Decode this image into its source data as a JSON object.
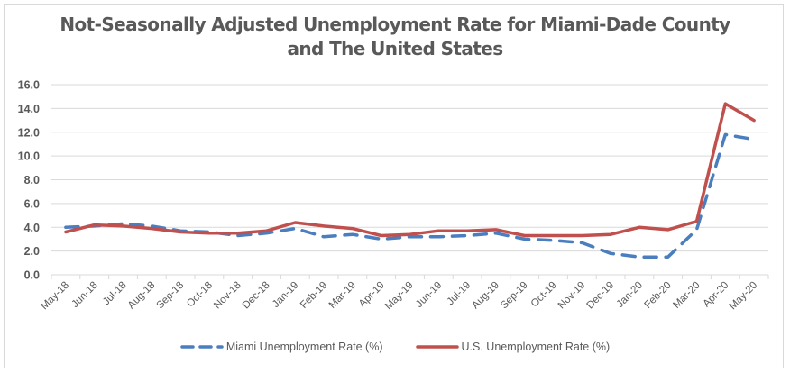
{
  "chart_data": {
    "type": "line",
    "title": "Not-Seasonally Adjusted Unemployment Rate for Miami-Dade County and The United States",
    "title_lines": [
      "Not-Seasonally Adjusted Unemployment Rate for Miami-Dade County",
      "and The United States"
    ],
    "xlabel": "",
    "ylabel": "",
    "ylim": [
      0,
      16
    ],
    "yticks": [
      0,
      2,
      4,
      6,
      8,
      10,
      12,
      14,
      16
    ],
    "ytick_labels": [
      "0.0",
      "2.0",
      "4.0",
      "6.0",
      "8.0",
      "10.0",
      "12.0",
      "14.0",
      "16.0"
    ],
    "grid": true,
    "legend_position": "bottom",
    "categories": [
      "May-18",
      "Jun-18",
      "Jul-18",
      "Aug-18",
      "Sep-18",
      "Oct-18",
      "Nov-18",
      "Dec-18",
      "Jan-19",
      "Feb-19",
      "Mar-19",
      "Apr-19",
      "May-19",
      "Jun-19",
      "Jul-19",
      "Aug-19",
      "Sep-19",
      "Oct-19",
      "Nov-19",
      "Dec-19",
      "Jan-20",
      "Feb-20",
      "Mar-20",
      "Apr-20",
      "May-20"
    ],
    "series": [
      {
        "name": "Miami Unemployment Rate (%)",
        "color": "#4a7ebf",
        "style": "dashed",
        "values": [
          4.0,
          4.1,
          4.3,
          4.1,
          3.7,
          3.6,
          3.3,
          3.5,
          3.9,
          3.2,
          3.4,
          3.0,
          3.2,
          3.2,
          3.3,
          3.5,
          3.0,
          2.9,
          2.7,
          1.8,
          1.5,
          1.5,
          3.8,
          11.8,
          11.4
        ]
      },
      {
        "name": "U.S. Unemployment Rate (%)",
        "color": "#c0504d",
        "style": "solid",
        "values": [
          3.6,
          4.2,
          4.1,
          3.9,
          3.6,
          3.5,
          3.5,
          3.7,
          4.4,
          4.1,
          3.9,
          3.3,
          3.4,
          3.7,
          3.7,
          3.8,
          3.3,
          3.3,
          3.3,
          3.4,
          4.0,
          3.8,
          4.5,
          14.4,
          13.0
        ]
      }
    ]
  }
}
